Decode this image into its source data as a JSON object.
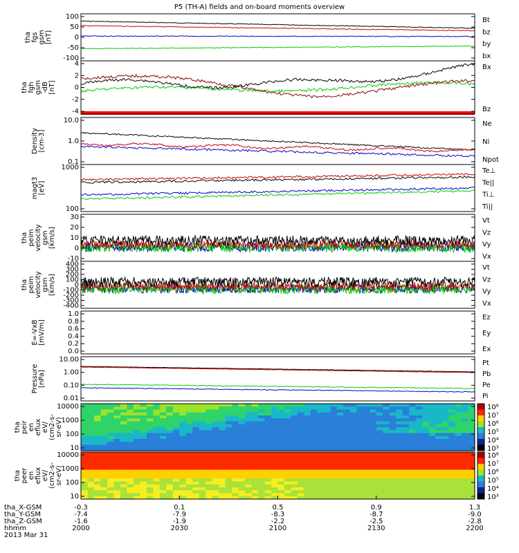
{
  "title": "P5 (TH-A) fields and on-board moments overview",
  "date_label": "2013 Mar 31",
  "chart_data": {
    "type": "line",
    "panels": [
      {
        "id": "fgs",
        "ylabel": [
          "tha",
          "fgs",
          "gsm",
          "[nT]"
        ],
        "yticks": [
          "100",
          "50",
          "0",
          "-50",
          "-100"
        ],
        "ylim": [
          -100,
          100
        ],
        "series": [
          {
            "name": "Bt",
            "color": "#000000",
            "start": 78,
            "end": 44
          },
          {
            "name": "bz",
            "color": "#cc0000",
            "start": 56,
            "end": 32
          },
          {
            "name": "by",
            "color": "#00cc00",
            "start": -55,
            "end": -42
          },
          {
            "name": "bx",
            "color": "#0000cc",
            "start": 6,
            "end": 4
          }
        ]
      },
      {
        "id": "fgm",
        "ylabel": [
          "tha",
          "fgh",
          "gsm",
          "-dB",
          "[nT]"
        ],
        "yticks": [
          "4",
          "2",
          "0",
          "-2",
          "-4"
        ],
        "ylim": [
          -5,
          4.5
        ],
        "series": [
          {
            "name": "Bx",
            "color": "#000000"
          },
          {
            "name": "Bz",
            "color": "#8b0000"
          }
        ]
      },
      {
        "id": "density",
        "ylabel": [
          "Density",
          "[cm-3]"
        ],
        "yticks": [
          "10.0",
          "1.0",
          "0.1"
        ],
        "log": true,
        "series": [
          {
            "name": "Ne",
            "color": "#cc0000"
          },
          {
            "name": "Ni",
            "color": "#000000"
          },
          {
            "name": "Npot",
            "color": "#0000cc"
          }
        ]
      },
      {
        "id": "temp",
        "ylabel": [
          "magt3",
          "[eV]"
        ],
        "yticks": [
          "1000",
          "100"
        ],
        "log": true,
        "series": [
          {
            "name": "Te⊥",
            "color": "#cc0000"
          },
          {
            "name": "Te||",
            "color": "#000000"
          },
          {
            "name": "Ti⊥",
            "color": "#0000cc"
          },
          {
            "name": "Ti||",
            "color": "#00cc00"
          }
        ]
      },
      {
        "id": "peem",
        "ylabel": [
          "tha",
          "peim",
          "velocity",
          "gsm",
          "[km/s]"
        ],
        "yticks": [
          "30",
          "20",
          "10",
          "0",
          "-10"
        ],
        "ylim": [
          -10,
          30
        ],
        "series": [
          {
            "name": "Vt",
            "color": "#000000"
          },
          {
            "name": "Vz",
            "color": "#cc0000"
          },
          {
            "name": "Vy",
            "color": "#00cc00"
          },
          {
            "name": "Vx",
            "color": "#0000cc"
          }
        ]
      },
      {
        "id": "peim",
        "ylabel": [
          "tha",
          "peim",
          "velocity",
          "gsm",
          "[km/s]"
        ],
        "yticks": [
          "400",
          "300",
          "200",
          "100",
          "0",
          "-100",
          "-200",
          "-300",
          "-400"
        ],
        "ylim": [
          -400,
          400
        ],
        "series": [
          {
            "name": "Vt",
            "color": "#000000"
          },
          {
            "name": "Vz",
            "color": "#cc0000"
          },
          {
            "name": "Vy",
            "color": "#00cc00"
          },
          {
            "name": "Vx",
            "color": "#0000cc"
          }
        ]
      },
      {
        "id": "efield",
        "ylabel": [
          "E=-VxB",
          "[mV/m]"
        ],
        "yticks": [
          "1.0",
          "0.8",
          "0.6",
          "0.4",
          "0.2",
          "0.0"
        ],
        "ylim": [
          0,
          1
        ],
        "series": [
          {
            "name": "Ez",
            "color": "#cc0000"
          },
          {
            "name": "Ey",
            "color": "#00cc00"
          },
          {
            "name": "Ex",
            "color": "#0000cc"
          }
        ]
      },
      {
        "id": "pressure",
        "ylabel": [
          "Pressure",
          "[nPa]"
        ],
        "yticks": [
          "10.00",
          "1.00",
          "0.10",
          "0.01"
        ],
        "log": true,
        "series": [
          {
            "name": "Pt",
            "color": "#000000"
          },
          {
            "name": "Pb",
            "color": "#cc0000"
          },
          {
            "name": "Pe",
            "color": "#00cc00"
          },
          {
            "name": "Pi",
            "color": "#0000cc"
          }
        ]
      },
      {
        "id": "peir",
        "ylabel": [
          "tha",
          "peir",
          "en",
          "eflux",
          "eV/",
          "(cm2-s-",
          "sr-eV)"
        ],
        "yticks": [
          "10000",
          "1000",
          "100",
          "10"
        ],
        "cbar_ticks": [
          "10⁸",
          "10⁷",
          "10⁶",
          "10⁵",
          "10⁴",
          "10³"
        ]
      },
      {
        "id": "peer",
        "ylabel": [
          "tha",
          "peer",
          "en",
          "eflux",
          "eV/",
          "(cm2-s-",
          "sr-eV)"
        ],
        "yticks": [
          "10000",
          "1000",
          "100",
          "10"
        ],
        "cbar_ticks": [
          "10⁸",
          "10⁷",
          "10⁶",
          "10⁵",
          "10⁴",
          "10³"
        ]
      }
    ],
    "x_axis": {
      "rows": [
        {
          "label": "tha_X-GSM",
          "values": [
            "-0.3",
            "0.1",
            "0.5",
            "0.9",
            "1.3"
          ]
        },
        {
          "label": "tha_Y-GSM",
          "values": [
            "-7.4",
            "-7.9",
            "-8.3",
            "-8.7",
            "-9.0"
          ]
        },
        {
          "label": "tha_Z-GSM",
          "values": [
            "-1.6",
            "-1.9",
            "-2.2",
            "-2.5",
            "-2.8"
          ]
        },
        {
          "label": "hhmm",
          "values": [
            "2000",
            "2030",
            "2100",
            "2130",
            "2200"
          ]
        }
      ]
    }
  }
}
